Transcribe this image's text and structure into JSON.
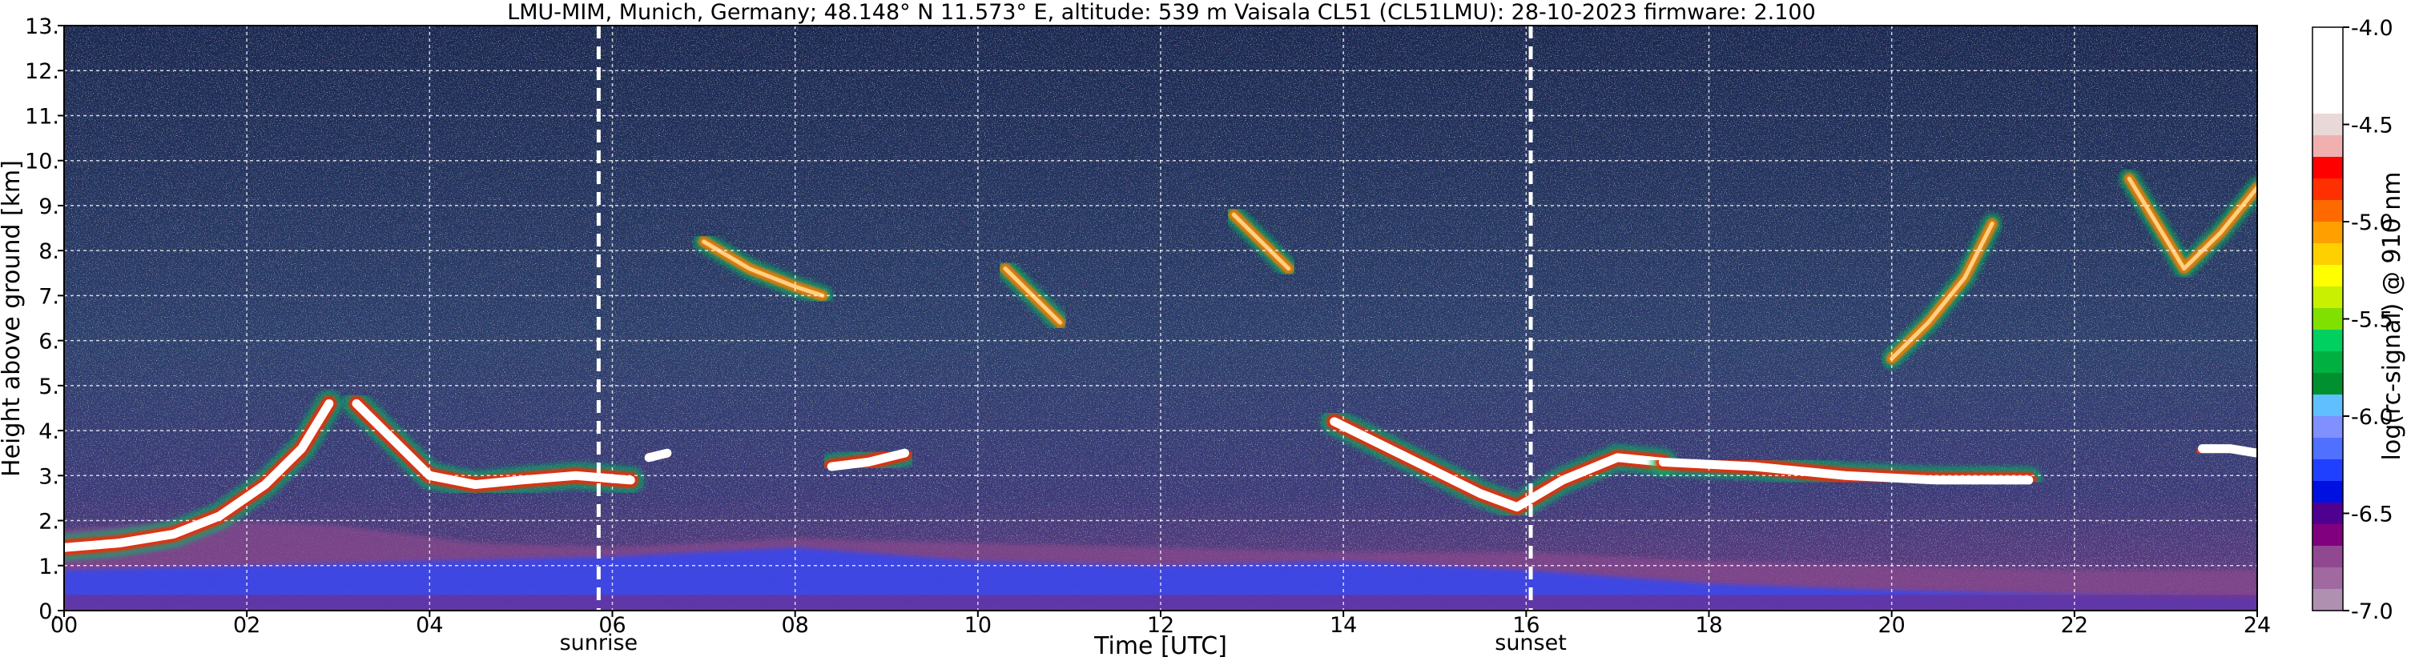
{
  "chart_data": {
    "type": "heatmap",
    "title": "LMU-MIM, Munich, Germany; 48.148° N 11.573° E, altitude: 539 m    Vaisala CL51 (CL51LMU): 28-10-2023    firmware: 2.100",
    "xlabel": "Time [UTC]",
    "ylabel": "Height above ground [km]",
    "xlim": [
      0,
      24
    ],
    "ylim": [
      0,
      13
    ],
    "x_ticks": [
      "00",
      "02",
      "04",
      "06",
      "08",
      "10",
      "12",
      "14",
      "16",
      "18",
      "20",
      "22",
      "24"
    ],
    "y_ticks": [
      "0.",
      "1.",
      "2.",
      "3.",
      "4.",
      "5.",
      "6.",
      "7.",
      "8.",
      "9.",
      "10.",
      "11.",
      "12.",
      "13."
    ],
    "grid": true,
    "events": [
      {
        "label": "sunrise",
        "time": 5.85
      },
      {
        "label": "sunset",
        "time": 16.05
      }
    ],
    "colorbar": {
      "label": "log(rc-signal) @ 910 nm",
      "range": [
        -7.0,
        -4.0
      ],
      "ticks": [
        "-4.0",
        "-4.5",
        "-5.0",
        "-5.5",
        "-6.0",
        "-6.5",
        "-7.0"
      ],
      "colors": [
        "#ffffff",
        "#ffffff",
        "#ffffff",
        "#ffffff",
        "#e8d8d8",
        "#f0b0b0",
        "#ff0000",
        "#ff3000",
        "#ff6a00",
        "#ffa000",
        "#ffd000",
        "#ffff00",
        "#c8f000",
        "#80e000",
        "#00d060",
        "#00b040",
        "#009030",
        "#60c0ff",
        "#8090ff",
        "#5070ff",
        "#2040ff",
        "#0010e0",
        "#500090",
        "#800080",
        "#904890",
        "#a06aa0",
        "#b090b0"
      ]
    },
    "layers": [
      {
        "name": "boundary-layer",
        "x": [
          0,
          1.5,
          3,
          4.5,
          6,
          8,
          10,
          12,
          14,
          16,
          18,
          20,
          22,
          24
        ],
        "y_top": [
          1.8,
          2.0,
          1.9,
          1.5,
          1.4,
          1.6,
          1.5,
          1.4,
          1.3,
          1.3,
          1.1,
          1.0,
          0.9,
          0.9
        ]
      },
      {
        "name": "aerosol-blue",
        "x": [
          0,
          2,
          4,
          6,
          8,
          10,
          12,
          14,
          16,
          18,
          20,
          22,
          24
        ],
        "y_top": [
          0.9,
          1.0,
          1.1,
          1.2,
          1.4,
          1.1,
          1.0,
          1.1,
          0.9,
          0.6,
          0.45,
          0.35,
          0.3
        ]
      }
    ],
    "cloud_series": [
      {
        "name": "low-cloud-1",
        "x": [
          0,
          0.6,
          1.2,
          1.7,
          2.2,
          2.6,
          2.9
        ],
        "y": [
          1.4,
          1.5,
          1.7,
          2.1,
          2.8,
          3.6,
          4.6
        ]
      },
      {
        "name": "low-cloud-2",
        "x": [
          3.2,
          3.6,
          4.0,
          4.5,
          5.0,
          5.6,
          6.2
        ],
        "y": [
          4.6,
          3.8,
          3.0,
          2.8,
          2.9,
          3.0,
          2.9
        ]
      },
      {
        "name": "low-cloud-3",
        "x": [
          6.4,
          6.6
        ],
        "y": [
          3.4,
          3.5
        ]
      },
      {
        "name": "low-cloud-4",
        "x": [
          8.4,
          8.8,
          9.2
        ],
        "y": [
          3.2,
          3.3,
          3.5
        ]
      },
      {
        "name": "low-cloud-5",
        "x": [
          13.9,
          14.5,
          15.0,
          15.5,
          15.9,
          16.4,
          17.0,
          17.5
        ],
        "y": [
          4.2,
          3.6,
          3.1,
          2.6,
          2.3,
          2.9,
          3.4,
          3.3
        ]
      },
      {
        "name": "low-cloud-6",
        "x": [
          17.5,
          18.5,
          19.5,
          20.5,
          21.5
        ],
        "y": [
          3.3,
          3.2,
          3.0,
          2.9,
          2.9
        ]
      },
      {
        "name": "low-cloud-7",
        "x": [
          23.4,
          23.7,
          24
        ],
        "y": [
          3.6,
          3.6,
          3.5
        ]
      },
      {
        "name": "cirrus-1",
        "x": [
          7.0,
          7.5,
          8.0,
          8.3
        ],
        "y": [
          8.2,
          7.6,
          7.2,
          7.0
        ]
      },
      {
        "name": "cirrus-2",
        "x": [
          10.3,
          10.6,
          10.9
        ],
        "y": [
          7.6,
          7.0,
          6.4
        ]
      },
      {
        "name": "cirrus-3",
        "x": [
          12.8,
          13.1,
          13.4
        ],
        "y": [
          8.8,
          8.2,
          7.6
        ]
      },
      {
        "name": "cirrus-4",
        "x": [
          20.0,
          20.4,
          20.8,
          21.1
        ],
        "y": [
          5.6,
          6.4,
          7.4,
          8.6
        ]
      },
      {
        "name": "cirrus-5",
        "x": [
          22.6,
          22.9,
          23.2,
          23.6,
          24
        ],
        "y": [
          9.6,
          8.6,
          7.6,
          8.4,
          9.4
        ]
      }
    ]
  }
}
